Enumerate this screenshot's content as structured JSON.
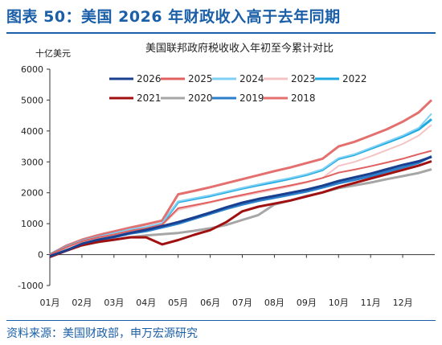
{
  "header": {
    "title": "图表 50：美国 2026 年财政收入高于去年同期"
  },
  "footer": {
    "source": "资料来源：美国财政部，申万宏源研究"
  },
  "chart_data": {
    "type": "line",
    "title": "美国联邦政府税收收入年初至今累计对比",
    "ylabel": "十亿美元",
    "xlabel": "",
    "ylim": [
      -1000,
      6000
    ],
    "yticks": [
      -1000,
      0,
      1000,
      2000,
      3000,
      4000,
      5000,
      6000
    ],
    "categories": [
      "01月",
      "02月",
      "03月",
      "04月",
      "05月",
      "06月",
      "07月",
      "08月",
      "09月",
      "10月",
      "11月",
      "12月"
    ],
    "x": [
      0,
      0.5,
      1,
      1.5,
      2,
      2.5,
      3,
      3.5,
      4,
      4.5,
      5,
      5.5,
      6,
      6.5,
      7,
      7.5,
      8,
      8.5,
      9,
      9.5,
      10,
      10.5,
      11,
      11.5,
      11.9
    ],
    "series": [
      {
        "name": "2026",
        "color": "#1a3f8f",
        "width": 3,
        "values": [
          -50,
          130,
          350,
          480,
          580,
          700,
          800,
          920,
          1050,
          1200,
          1360,
          1530,
          1680,
          1800,
          1900,
          2000,
          2100,
          2230,
          2380,
          2500,
          2620,
          2760,
          2900,
          3020,
          3160
        ]
      },
      {
        "name": "2025",
        "color": "#e0605f",
        "width": 2,
        "values": [
          0,
          230,
          430,
          560,
          650,
          770,
          850,
          970,
          1500,
          1600,
          1700,
          1820,
          1930,
          2040,
          2140,
          2240,
          2350,
          2480,
          2650,
          2750,
          2860,
          2980,
          3100,
          3250,
          3360
        ]
      },
      {
        "name": "2024",
        "color": "#7fd0f5",
        "width": 2,
        "values": [
          0,
          250,
          450,
          580,
          690,
          820,
          900,
          1020,
          1720,
          1820,
          1920,
          2040,
          2160,
          2270,
          2380,
          2480,
          2600,
          2760,
          3120,
          3250,
          3450,
          3650,
          3850,
          4100,
          4560
        ]
      },
      {
        "name": "2023",
        "color": "#f4c4c4",
        "width": 2,
        "values": [
          0,
          220,
          400,
          530,
          640,
          760,
          840,
          950,
          1450,
          1560,
          1680,
          1800,
          1900,
          2000,
          2100,
          2210,
          2330,
          2480,
          2870,
          3000,
          3180,
          3380,
          3580,
          3850,
          4200
        ]
      },
      {
        "name": "2022",
        "color": "#1ea9e0",
        "width": 3,
        "values": [
          0,
          240,
          440,
          570,
          680,
          800,
          880,
          1000,
          1700,
          1800,
          1900,
          2020,
          2140,
          2250,
          2350,
          2460,
          2580,
          2740,
          3100,
          3230,
          3430,
          3620,
          3820,
          4050,
          4380
        ]
      },
      {
        "name": "2021",
        "color": "#a01010",
        "width": 3,
        "values": [
          -80,
          120,
          300,
          410,
          480,
          560,
          560,
          330,
          470,
          640,
          790,
          1050,
          1400,
          1550,
          1650,
          1750,
          1880,
          2010,
          2180,
          2320,
          2460,
          2600,
          2740,
          2880,
          3020
        ]
      },
      {
        "name": "2020",
        "color": "#a6a6a6",
        "width": 3,
        "values": [
          -50,
          150,
          300,
          400,
          480,
          560,
          620,
          660,
          700,
          770,
          850,
          960,
          1120,
          1280,
          1620,
          1750,
          1900,
          2010,
          2150,
          2240,
          2330,
          2440,
          2540,
          2640,
          2760
        ]
      },
      {
        "name": "2019",
        "color": "#2b7fcb",
        "width": 3,
        "values": [
          -50,
          130,
          340,
          470,
          560,
          680,
          760,
          880,
          1000,
          1160,
          1320,
          1480,
          1620,
          1740,
          1840,
          1940,
          2040,
          2170,
          2310,
          2420,
          2540,
          2680,
          2820,
          2970,
          3180
        ]
      },
      {
        "name": "2018",
        "color": "#e3706f",
        "width": 3,
        "values": [
          0,
          280,
          480,
          630,
          750,
          870,
          980,
          1100,
          1950,
          2060,
          2180,
          2310,
          2440,
          2570,
          2700,
          2820,
          2960,
          3100,
          3500,
          3650,
          3850,
          4050,
          4300,
          4600,
          5000
        ]
      }
    ],
    "legend_position": "top-left, inside plot",
    "grid": false
  }
}
